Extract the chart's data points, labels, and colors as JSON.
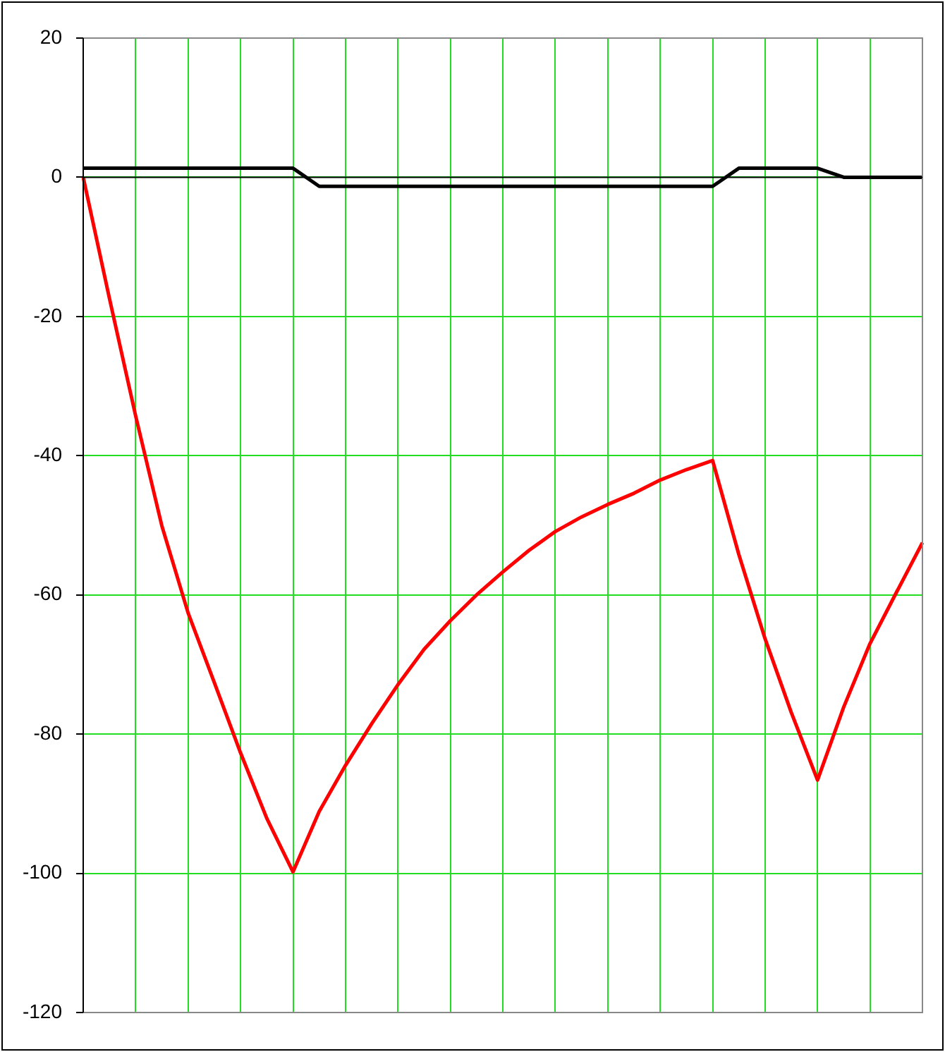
{
  "chart_data": {
    "type": "line",
    "categories": [
      null,
      null,
      null,
      null,
      null,
      null,
      null,
      null,
      null,
      null,
      null,
      null,
      null,
      null,
      null,
      null,
      null,
      null,
      null,
      null,
      null,
      null,
      null,
      null,
      null,
      null,
      null,
      null,
      null,
      null,
      null,
      null,
      null
    ],
    "ylim": [
      -120,
      20
    ],
    "yticks": [
      -120,
      -100,
      -80,
      -60,
      -40,
      -20,
      0,
      20
    ],
    "grid": true,
    "tick_labels": "y",
    "series": [
      {
        "color": "#ff0000",
        "values": [
          0,
          -17.4,
          -34.3,
          -50.1,
          -62.6,
          -72.6,
          -82.7,
          -92.1,
          -99.8,
          -91.1,
          -84.5,
          -78.5,
          -72.9,
          -67.8,
          -63.7,
          -60,
          -56.7,
          -53.6,
          -50.9,
          -48.8,
          -47,
          -45.4,
          -43.5,
          -42,
          -40.7,
          -54.2,
          -66.3,
          -76.9,
          -86.6,
          -76.1,
          -67,
          -59.7,
          -52.5
        ]
      },
      {
        "color": "#000000",
        "values": [
          1.3,
          1.3,
          1.3,
          1.3,
          1.3,
          1.3,
          1.3,
          1.3,
          1.3,
          -1.3,
          -1.3,
          -1.3,
          -1.3,
          -1.3,
          -1.3,
          -1.3,
          -1.3,
          -1.3,
          -1.3,
          -1.3,
          -1.3,
          -1.3,
          -1.3,
          -1.3,
          -1.3,
          1.3,
          1.3,
          1.3,
          1.3,
          0,
          0,
          0,
          0
        ]
      }
    ]
  }
}
